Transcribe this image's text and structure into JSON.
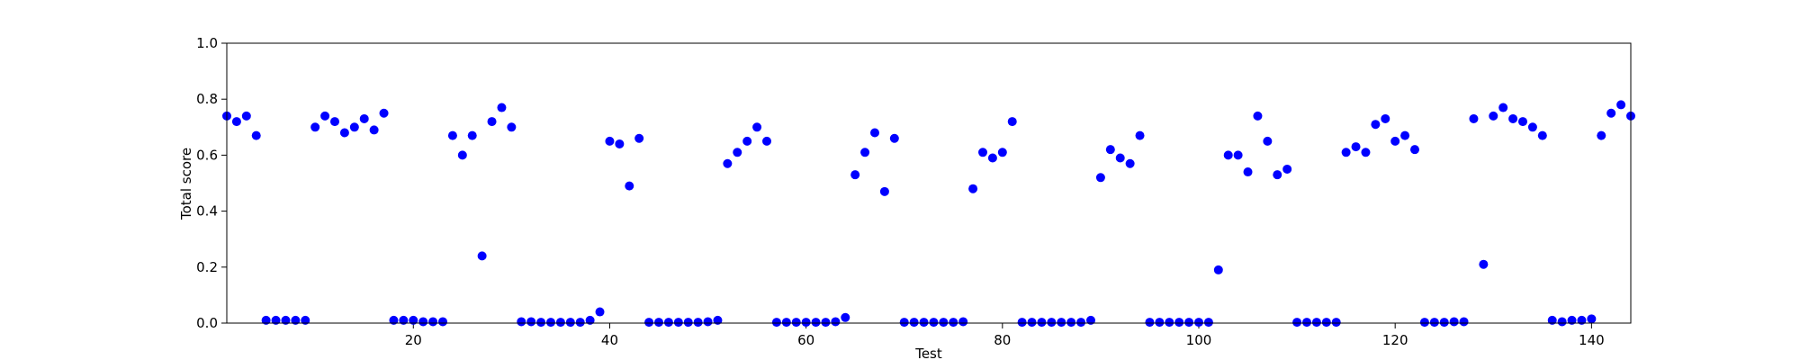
{
  "chart_data": {
    "type": "scatter",
    "title": "",
    "xlabel": "Test",
    "ylabel": "Total score",
    "xlim": [
      1,
      144
    ],
    "ylim": [
      0.0,
      1.0
    ],
    "xticks": [
      20,
      40,
      60,
      80,
      100,
      120,
      140
    ],
    "xtick_labels": [
      "20",
      "40",
      "60",
      "80",
      "100",
      "120",
      "140"
    ],
    "yticks": [
      0.0,
      0.2,
      0.4,
      0.6,
      0.8,
      1.0
    ],
    "ytick_labels": [
      "0.0",
      "0.2",
      "0.4",
      "0.6",
      "0.8",
      "1.0"
    ],
    "grid": false,
    "marker_color": "#0000ff",
    "points": [
      [
        1,
        0.74
      ],
      [
        2,
        0.72
      ],
      [
        3,
        0.74
      ],
      [
        4,
        0.67
      ],
      [
        5,
        0.01
      ],
      [
        6,
        0.01
      ],
      [
        7,
        0.01
      ],
      [
        8,
        0.01
      ],
      [
        9,
        0.01
      ],
      [
        10,
        0.7
      ],
      [
        11,
        0.74
      ],
      [
        12,
        0.72
      ],
      [
        13,
        0.68
      ],
      [
        14,
        0.7
      ],
      [
        15,
        0.73
      ],
      [
        16,
        0.69
      ],
      [
        17,
        0.75
      ],
      [
        18,
        0.01
      ],
      [
        19,
        0.01
      ],
      [
        20,
        0.01
      ],
      [
        21,
        0.005
      ],
      [
        22,
        0.005
      ],
      [
        23,
        0.005
      ],
      [
        24,
        0.67
      ],
      [
        25,
        0.6
      ],
      [
        26,
        0.67
      ],
      [
        27,
        0.24
      ],
      [
        28,
        0.72
      ],
      [
        29,
        0.77
      ],
      [
        30,
        0.7
      ],
      [
        31,
        0.005
      ],
      [
        32,
        0.005
      ],
      [
        33,
        0.003
      ],
      [
        34,
        0.003
      ],
      [
        35,
        0.003
      ],
      [
        36,
        0.003
      ],
      [
        37,
        0.003
      ],
      [
        38,
        0.01
      ],
      [
        39,
        0.04
      ],
      [
        40,
        0.65
      ],
      [
        41,
        0.64
      ],
      [
        42,
        0.49
      ],
      [
        43,
        0.66
      ],
      [
        44,
        0.003
      ],
      [
        45,
        0.003
      ],
      [
        46,
        0.003
      ],
      [
        47,
        0.003
      ],
      [
        48,
        0.003
      ],
      [
        49,
        0.003
      ],
      [
        50,
        0.005
      ],
      [
        51,
        0.01
      ],
      [
        52,
        0.57
      ],
      [
        53,
        0.61
      ],
      [
        54,
        0.65
      ],
      [
        55,
        0.7
      ],
      [
        56,
        0.65
      ],
      [
        57,
        0.003
      ],
      [
        58,
        0.003
      ],
      [
        59,
        0.003
      ],
      [
        60,
        0.003
      ],
      [
        61,
        0.003
      ],
      [
        62,
        0.003
      ],
      [
        63,
        0.005
      ],
      [
        64,
        0.02
      ],
      [
        65,
        0.53
      ],
      [
        66,
        0.61
      ],
      [
        67,
        0.68
      ],
      [
        68,
        0.47
      ],
      [
        69,
        0.66
      ],
      [
        70,
        0.003
      ],
      [
        71,
        0.003
      ],
      [
        72,
        0.003
      ],
      [
        73,
        0.003
      ],
      [
        74,
        0.003
      ],
      [
        75,
        0.003
      ],
      [
        76,
        0.005
      ],
      [
        77,
        0.48
      ],
      [
        78,
        0.61
      ],
      [
        79,
        0.59
      ],
      [
        80,
        0.61
      ],
      [
        81,
        0.72
      ],
      [
        82,
        0.003
      ],
      [
        83,
        0.003
      ],
      [
        84,
        0.003
      ],
      [
        85,
        0.003
      ],
      [
        86,
        0.003
      ],
      [
        87,
        0.003
      ],
      [
        88,
        0.003
      ],
      [
        89,
        0.01
      ],
      [
        90,
        0.52
      ],
      [
        91,
        0.62
      ],
      [
        92,
        0.59
      ],
      [
        93,
        0.57
      ],
      [
        94,
        0.67
      ],
      [
        95,
        0.003
      ],
      [
        96,
        0.003
      ],
      [
        97,
        0.003
      ],
      [
        98,
        0.003
      ],
      [
        99,
        0.003
      ],
      [
        100,
        0.003
      ],
      [
        101,
        0.003
      ],
      [
        102,
        0.19
      ],
      [
        103,
        0.6
      ],
      [
        104,
        0.6
      ],
      [
        105,
        0.54
      ],
      [
        106,
        0.74
      ],
      [
        107,
        0.65
      ],
      [
        108,
        0.53
      ],
      [
        109,
        0.55
      ],
      [
        110,
        0.003
      ],
      [
        111,
        0.003
      ],
      [
        112,
        0.003
      ],
      [
        113,
        0.003
      ],
      [
        114,
        0.003
      ],
      [
        115,
        0.61
      ],
      [
        116,
        0.63
      ],
      [
        117,
        0.61
      ],
      [
        118,
        0.71
      ],
      [
        119,
        0.73
      ],
      [
        120,
        0.65
      ],
      [
        121,
        0.67
      ],
      [
        122,
        0.62
      ],
      [
        123,
        0.003
      ],
      [
        124,
        0.003
      ],
      [
        125,
        0.003
      ],
      [
        126,
        0.005
      ],
      [
        127,
        0.005
      ],
      [
        128,
        0.73
      ],
      [
        129,
        0.21
      ],
      [
        130,
        0.74
      ],
      [
        131,
        0.77
      ],
      [
        132,
        0.73
      ],
      [
        133,
        0.72
      ],
      [
        134,
        0.7
      ],
      [
        135,
        0.67
      ],
      [
        136,
        0.01
      ],
      [
        137,
        0.005
      ],
      [
        138,
        0.01
      ],
      [
        139,
        0.01
      ],
      [
        140,
        0.015
      ],
      [
        141,
        0.67
      ],
      [
        142,
        0.75
      ],
      [
        143,
        0.78
      ],
      [
        144,
        0.74
      ]
    ]
  }
}
